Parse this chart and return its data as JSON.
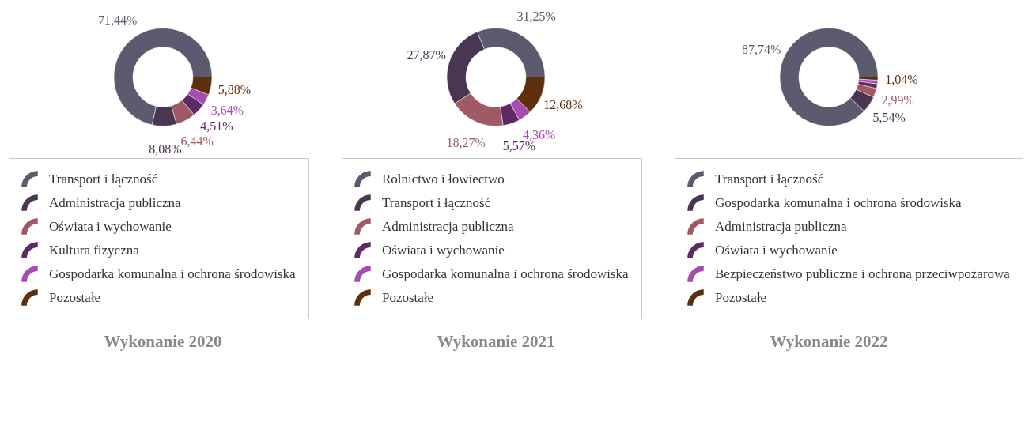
{
  "chart_data": [
    {
      "type": "donut",
      "title": "Wykonanie 2020",
      "legend": "bottom",
      "categories": [
        "Transport i łączność",
        "Administracja publiczna",
        "Oświata i wychowanie",
        "Kultura fizyczna",
        "Gospodarka komunalna i ochrona środowiska",
        "Pozostałe"
      ],
      "values": [
        71.44,
        8.08,
        6.44,
        4.51,
        3.64,
        5.88
      ],
      "value_labels": [
        "71,44%",
        "8,08%",
        "6,44%",
        "4,51%",
        "3,64%",
        "5,88%"
      ],
      "colors": [
        "#5b5a6e",
        "#4a3652",
        "#a05a66",
        "#5c2a66",
        "#a64bb0",
        "#5e2f0c"
      ]
    },
    {
      "type": "donut",
      "title": "Wykonanie 2021",
      "legend": "bottom",
      "categories": [
        "Rolnictwo i łowiectwo",
        "Transport i łączność",
        "Administracja publiczna",
        "Oświata i wychowanie",
        "Gospodarka komunalna i ochrona środowiska",
        "Pozostałe"
      ],
      "values": [
        31.25,
        27.87,
        18.27,
        5.57,
        4.36,
        12.68
      ],
      "value_labels": [
        "31,25%",
        "27,87%",
        "18,27%",
        "5,57%",
        "4,36%",
        "12,68%"
      ],
      "colors": [
        "#5b5a6e",
        "#4a3652",
        "#a05a66",
        "#5c2a66",
        "#a64bb0",
        "#5e2f0c"
      ]
    },
    {
      "type": "donut",
      "title": "Wykonanie 2022",
      "legend": "bottom",
      "categories": [
        "Transport i łączność",
        "Gospodarka komunalna i ochrona środowiska",
        "Administracja publiczna",
        "Oświata i wychowanie",
        "Bezpieczeństwo publiczne i ochrona przeciwpożarowa",
        "Pozostałe"
      ],
      "values": [
        87.74,
        5.54,
        2.99,
        1.5,
        1.19,
        1.04
      ],
      "value_labels": [
        "87,74%",
        "5,54%",
        "2,99%",
        null,
        null,
        "1,04%"
      ],
      "colors": [
        "#5b5a6e",
        "#4a3652",
        "#a05a66",
        "#5c2a66",
        "#a64bb0",
        "#5e2f0c"
      ]
    }
  ]
}
